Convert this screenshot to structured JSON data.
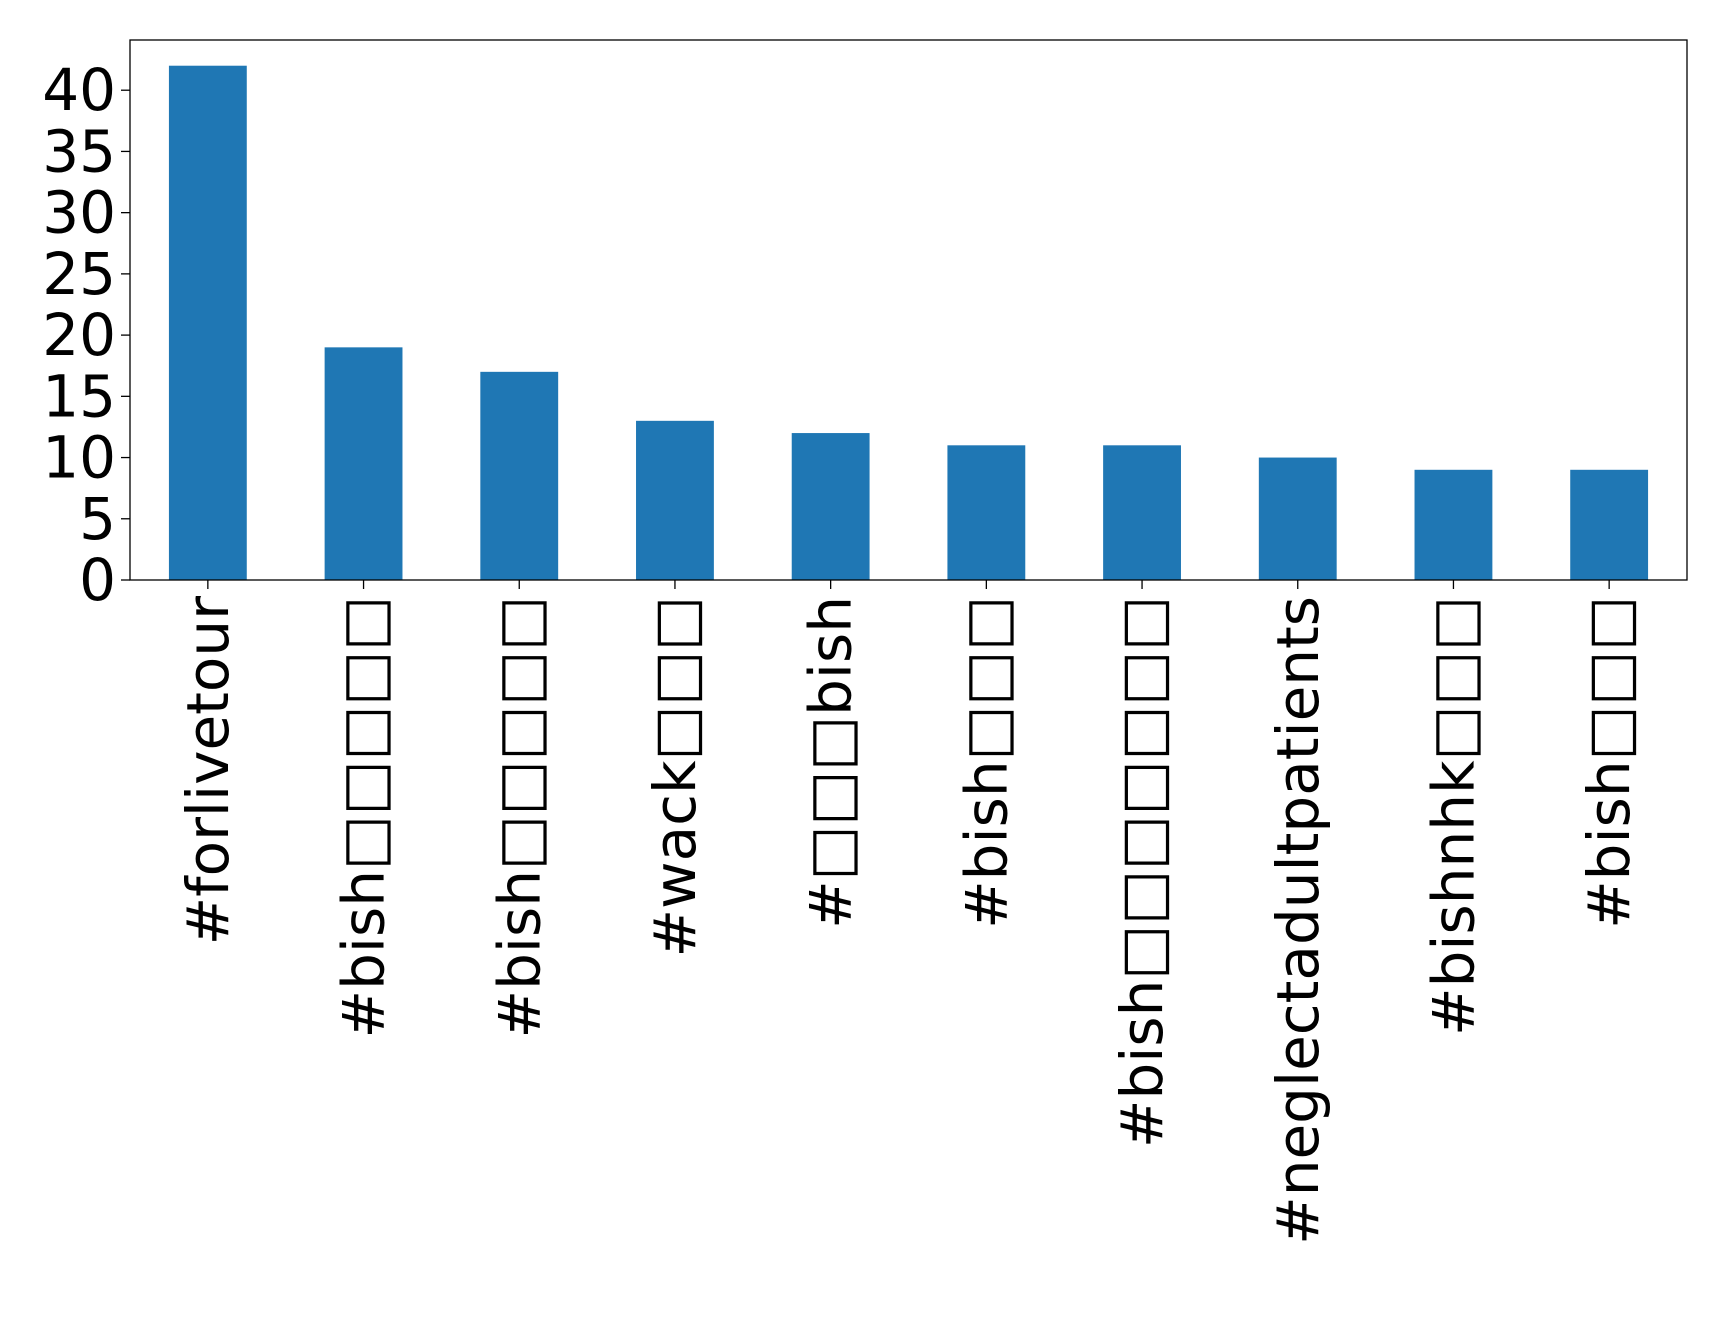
{
  "chart_data": {
    "type": "bar",
    "title": "",
    "xlabel": "",
    "ylabel": "",
    "categories": [
      "#forlivetour",
      "#bish□□□□□",
      "#bish□□□□□",
      "#wack□□□",
      "#□□□bish",
      "#bish□□□",
      "#bish□□□□□□□",
      "#neglectadultpatients",
      "#bishnhk□□□",
      "#bish□□□"
    ],
    "values": [
      42,
      19,
      17,
      13,
      12,
      11,
      11,
      10,
      9,
      9
    ],
    "ylim": [
      0,
      44.1
    ],
    "yticks": [
      0,
      5,
      10,
      15,
      20,
      25,
      30,
      35,
      40
    ],
    "grid": false,
    "legend": "none",
    "bar_color": "#1f77b4"
  }
}
